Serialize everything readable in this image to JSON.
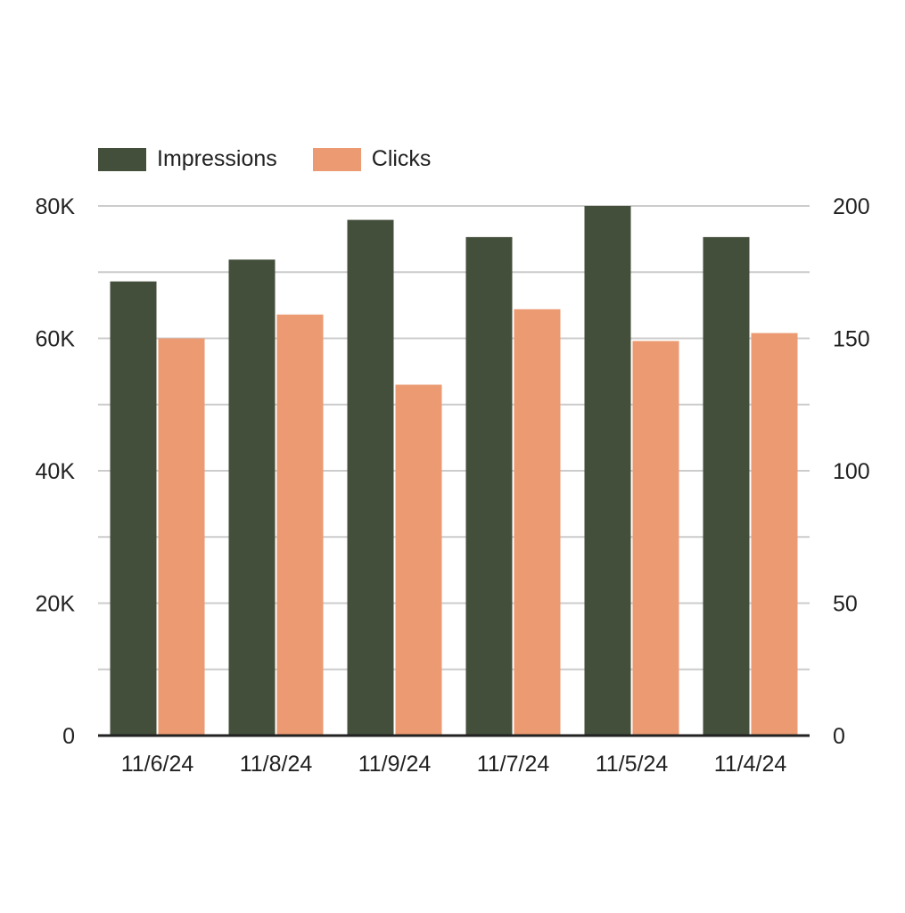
{
  "chart_data": {
    "type": "bar",
    "categories": [
      "11/6/24",
      "11/8/24",
      "11/9/24",
      "11/7/24",
      "11/5/24",
      "11/4/24"
    ],
    "series": [
      {
        "name": "Impressions",
        "axis": "left",
        "color": "#434f3b",
        "values": [
          68600,
          71900,
          77900,
          75300,
          80000,
          75300
        ]
      },
      {
        "name": "Clicks",
        "axis": "right",
        "color": "#eb9a71",
        "values": [
          150,
          159,
          132.5,
          161,
          149,
          152
        ]
      }
    ],
    "y_left": {
      "range": [
        0,
        80000
      ],
      "ticks": [
        0,
        20000,
        40000,
        60000,
        80000
      ],
      "tick_labels": [
        "0",
        "20K",
        "40K",
        "60K",
        "80K"
      ]
    },
    "y_right": {
      "range": [
        0,
        200
      ],
      "ticks": [
        0,
        50,
        100,
        150,
        200
      ],
      "tick_labels": [
        "0",
        "50",
        "100",
        "150",
        "200"
      ]
    },
    "grid": true,
    "legend_position": "top-left",
    "title": "",
    "xlabel": "",
    "ylabel": ""
  }
}
